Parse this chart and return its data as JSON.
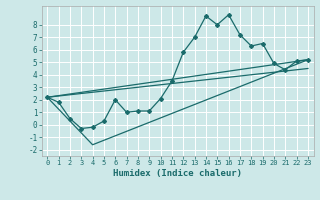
{
  "background_color": "#cde8e8",
  "grid_color": "#ffffff",
  "line_color": "#1a6b6b",
  "xlabel": "Humidex (Indice chaleur)",
  "xlim": [
    -0.5,
    23.5
  ],
  "ylim": [
    -2.5,
    9.5
  ],
  "xticks": [
    0,
    1,
    2,
    3,
    4,
    5,
    6,
    7,
    8,
    9,
    10,
    11,
    12,
    13,
    14,
    15,
    16,
    17,
    18,
    19,
    20,
    21,
    22,
    23
  ],
  "yticks": [
    -2,
    -1,
    0,
    1,
    2,
    3,
    4,
    5,
    6,
    7,
    8
  ],
  "series1_x": [
    0,
    1,
    2,
    3,
    4,
    5,
    6,
    7,
    8,
    9,
    10,
    11,
    12,
    13,
    14,
    15,
    16,
    17,
    18,
    19,
    20,
    21,
    22,
    23
  ],
  "series1_y": [
    2.2,
    1.8,
    0.5,
    -0.3,
    -0.2,
    0.3,
    2.0,
    1.0,
    1.1,
    1.1,
    2.1,
    3.5,
    5.8,
    7.0,
    8.7,
    8.0,
    8.8,
    7.2,
    6.3,
    6.5,
    4.9,
    4.4,
    5.1,
    5.2
  ],
  "series2_x": [
    0,
    4,
    23
  ],
  "series2_y": [
    2.2,
    -1.6,
    5.2
  ],
  "series3_x": [
    0,
    23
  ],
  "series3_y": [
    2.2,
    5.2
  ],
  "series4_x": [
    0,
    23
  ],
  "series4_y": [
    2.2,
    4.5
  ]
}
